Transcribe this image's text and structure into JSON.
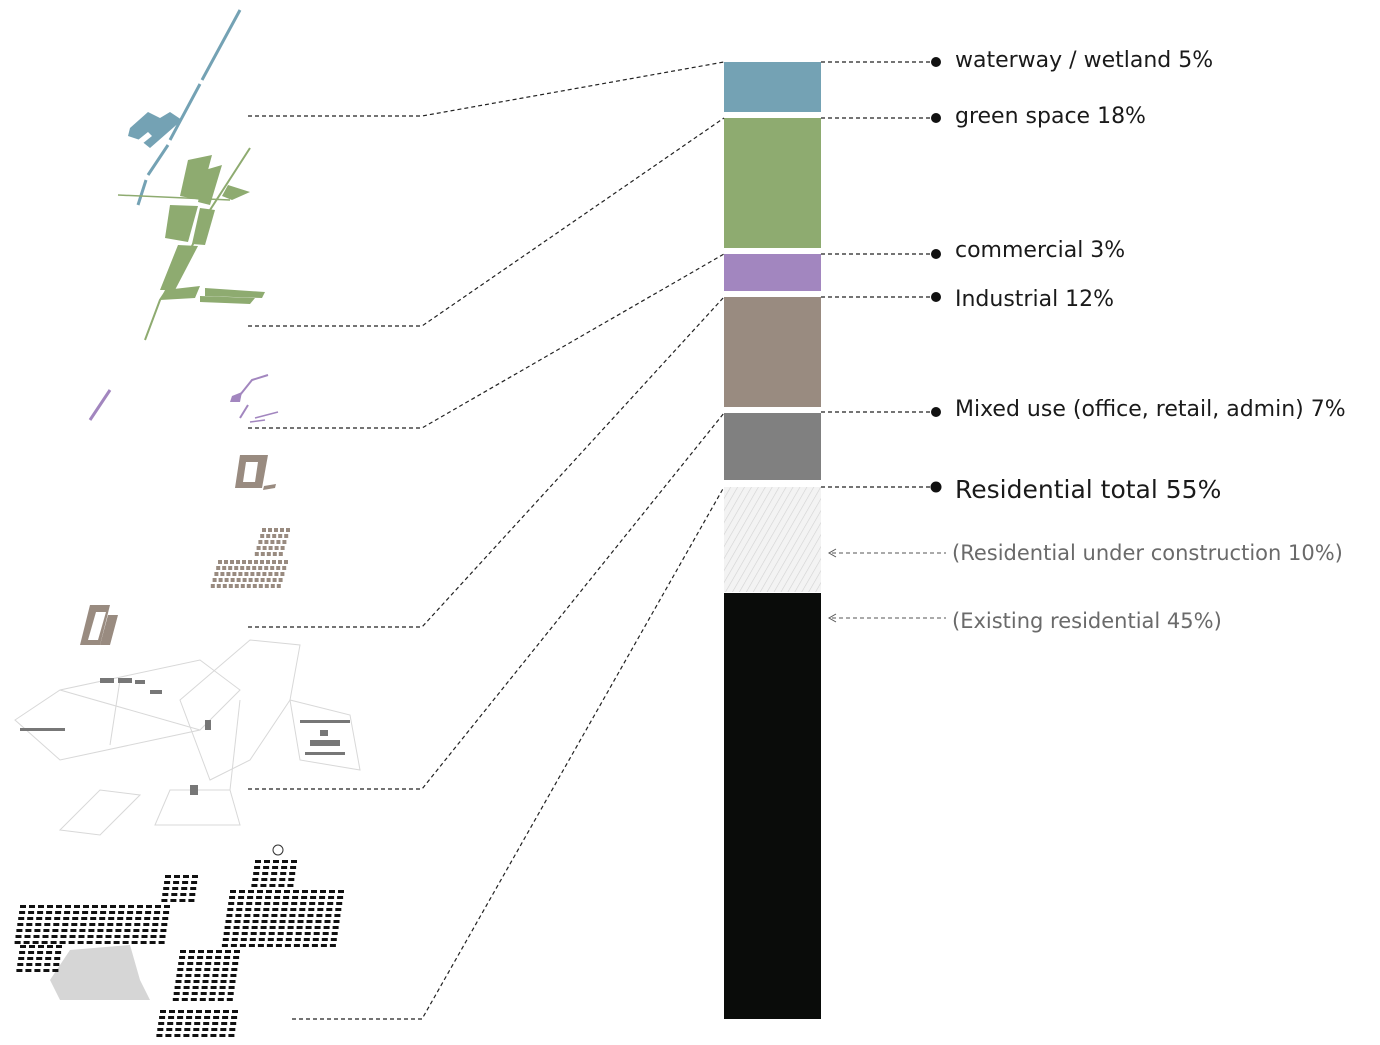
{
  "categories": [
    {
      "key": "waterway",
      "label": "waterway / wetland 5%",
      "color": "#74a2b4"
    },
    {
      "key": "green",
      "label": "green space 18%",
      "color": "#8eab70"
    },
    {
      "key": "commercial",
      "label": "commercial 3%",
      "color": "#a286bf"
    },
    {
      "key": "industrial",
      "label": "Industrial 12%",
      "color": "#998b80"
    },
    {
      "key": "mixed",
      "label": "Mixed use (office, retail, admin) 7%",
      "color": "#808080"
    }
  ],
  "residential": {
    "total_label": "Residential total 55%",
    "under_construction_label": "(Residential under construction 10%)",
    "existing_label": "(Existing residential 45%)",
    "existing_color": "#0a0c0a",
    "construction_color": "#dcdcdc"
  }
}
